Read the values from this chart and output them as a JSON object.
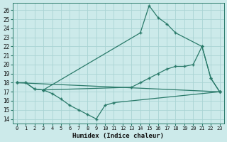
{
  "xlabel": "Humidex (Indice chaleur)",
  "xlim": [
    -0.5,
    23.5
  ],
  "ylim": [
    13.5,
    26.8
  ],
  "yticks": [
    14,
    15,
    16,
    17,
    18,
    19,
    20,
    21,
    22,
    23,
    24,
    25,
    26
  ],
  "xticks": [
    0,
    1,
    2,
    3,
    4,
    5,
    6,
    7,
    8,
    9,
    10,
    11,
    12,
    13,
    14,
    15,
    16,
    17,
    18,
    19,
    20,
    21,
    22,
    23
  ],
  "background_color": "#cceaea",
  "grid_color": "#aad4d4",
  "line_color": "#2a7a6a",
  "lines": [
    {
      "x": [
        0,
        1,
        2,
        3,
        14,
        15,
        16,
        17,
        18,
        21,
        22,
        23
      ],
      "y": [
        18,
        18,
        17.3,
        17.2,
        23.5,
        26.5,
        25.2,
        24.5,
        23.5,
        22,
        18.5,
        17
      ]
    },
    {
      "x": [
        0,
        1,
        2,
        3,
        13,
        14,
        15,
        16,
        17,
        18,
        19,
        20,
        21,
        22,
        23
      ],
      "y": [
        18,
        18,
        17.3,
        17.2,
        17.5,
        18,
        18.5,
        19,
        19.5,
        19.8,
        19.8,
        20,
        22,
        18.5,
        17
      ]
    },
    {
      "x": [
        0,
        23
      ],
      "y": [
        18,
        17
      ]
    },
    {
      "x": [
        3,
        4,
        5,
        6,
        7,
        8,
        9,
        10,
        11,
        23
      ],
      "y": [
        17.2,
        16.8,
        16.2,
        15.5,
        15.0,
        14.5,
        14.0,
        15.5,
        15.8,
        17
      ]
    }
  ]
}
